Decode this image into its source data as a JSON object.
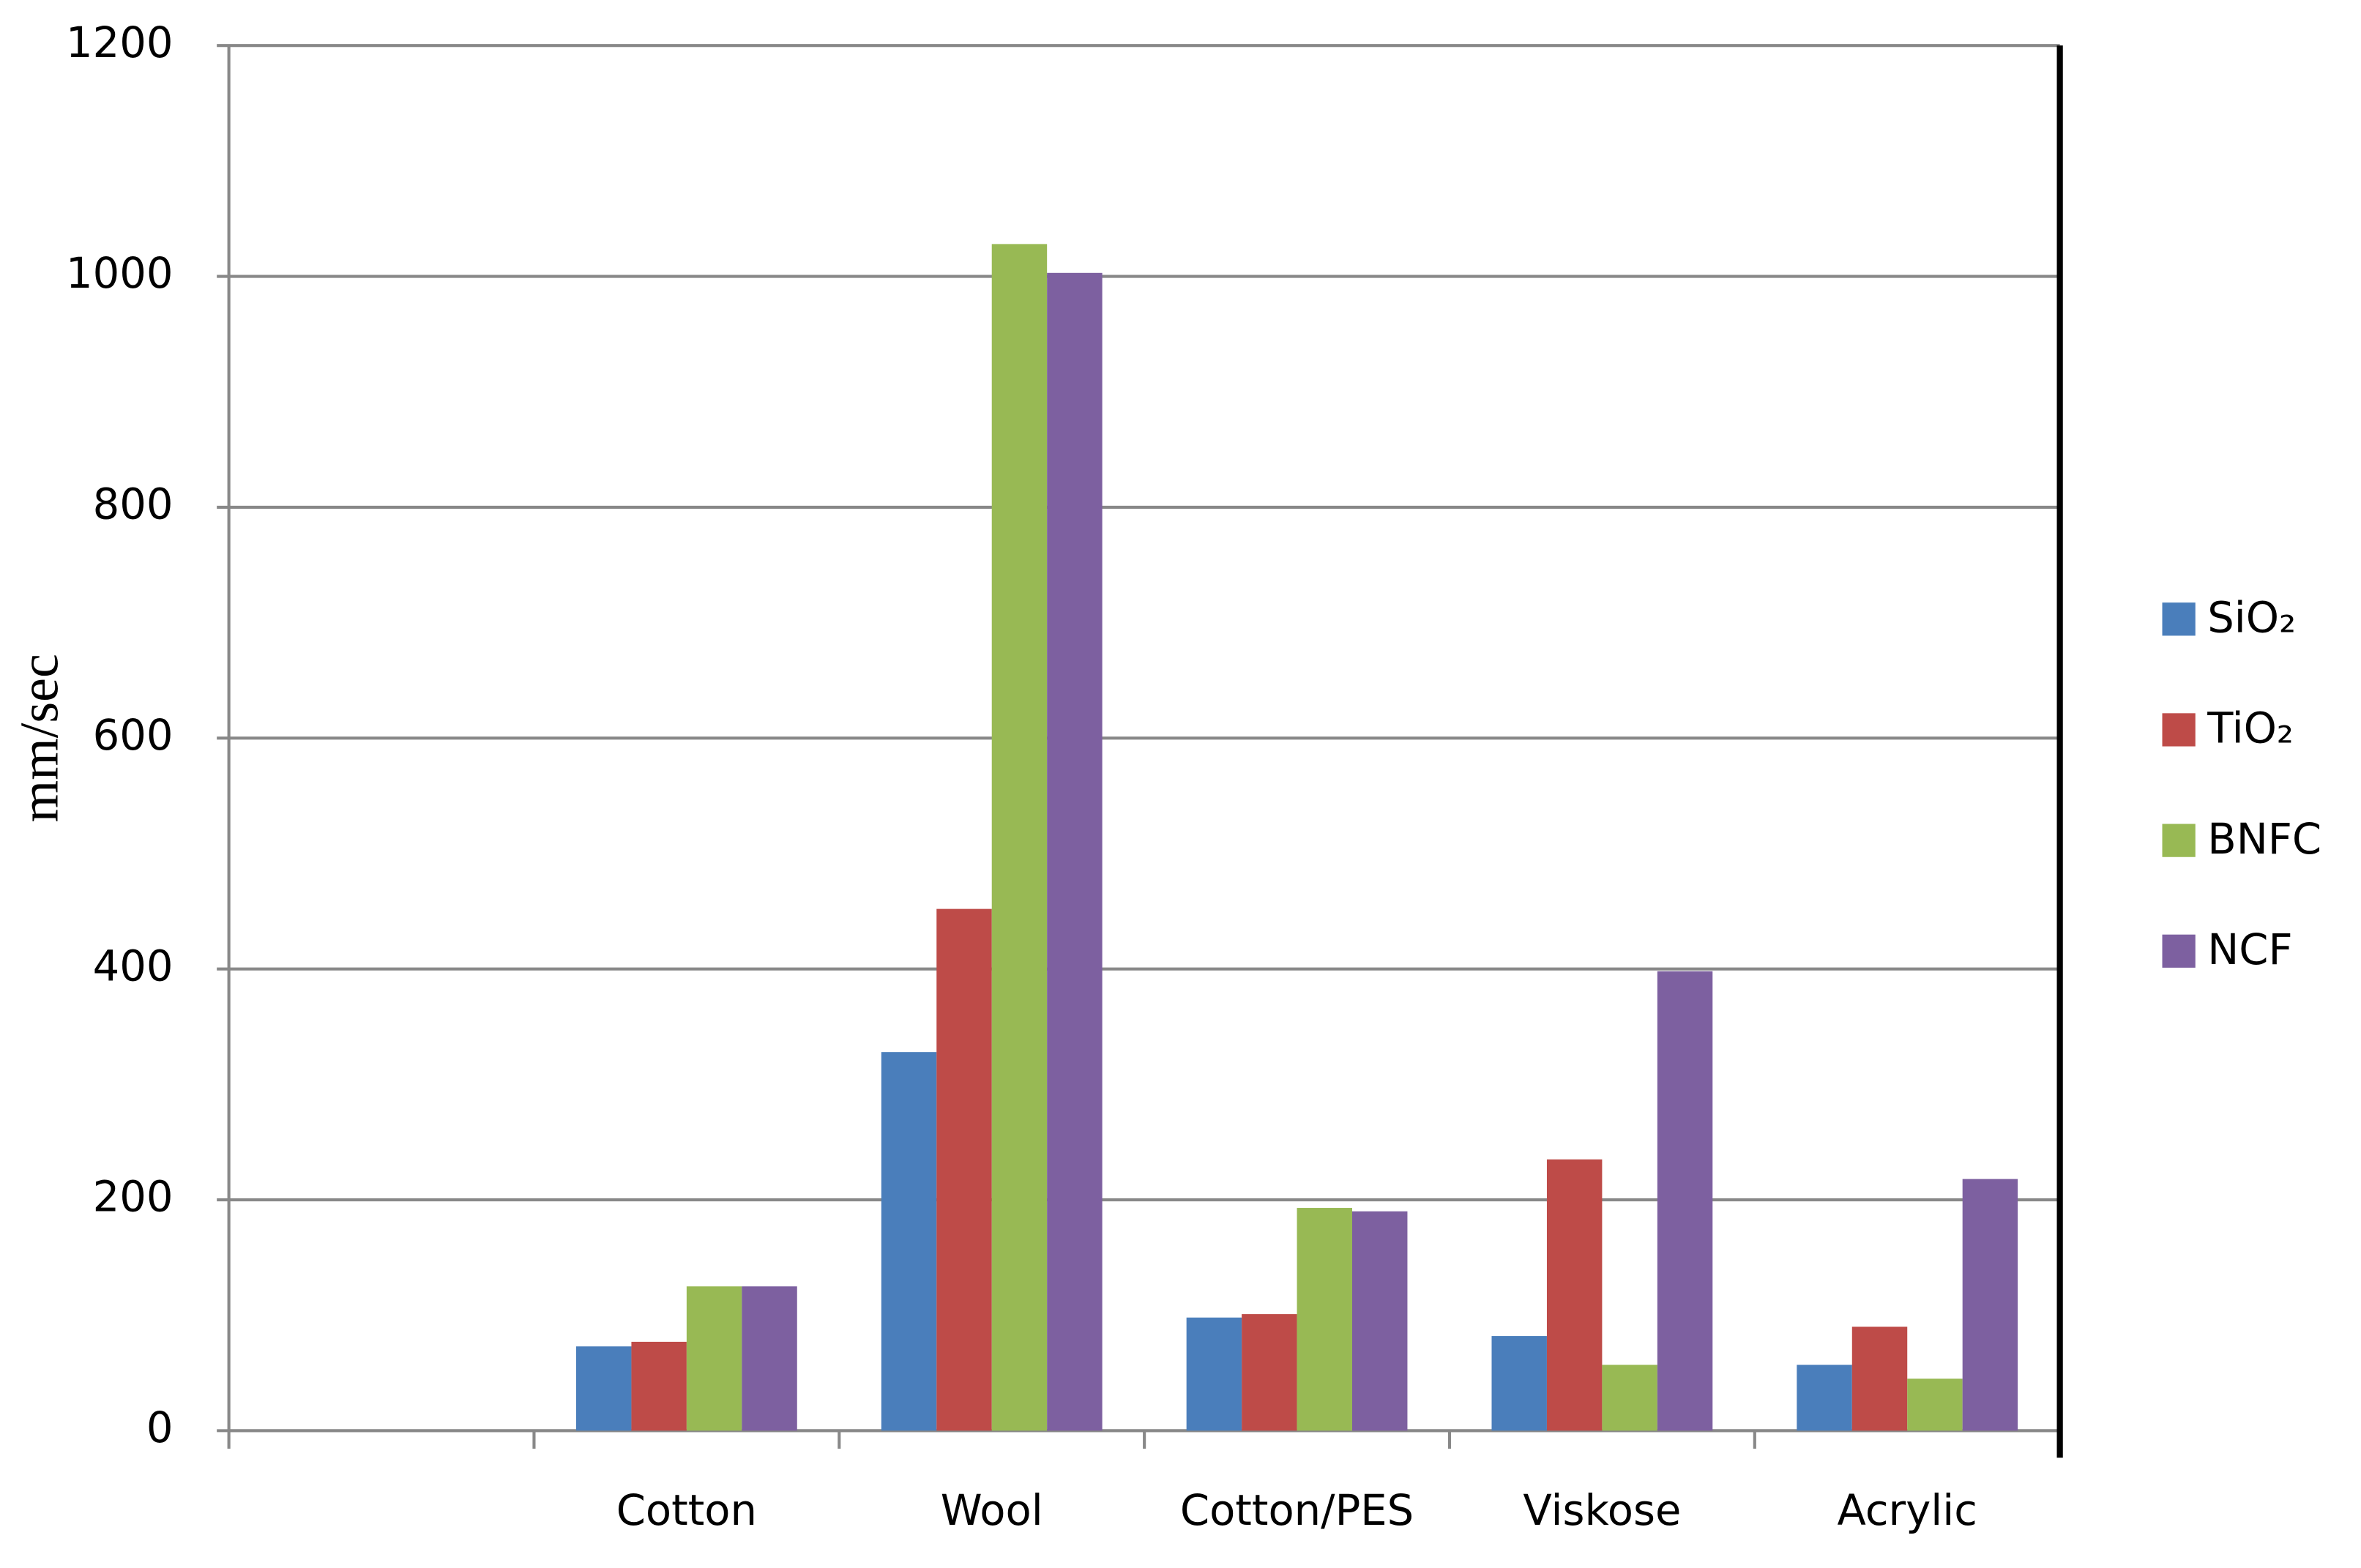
{
  "chart_data": {
    "type": "bar",
    "y_label": "mm/sec",
    "categories": [
      null,
      "Cotton",
      "Wool",
      "Cotton/PES",
      "Viskose",
      "Acrylic"
    ],
    "series": [
      {
        "name": "SiO₂",
        "color": "#4a7ebb",
        "values": [
          null,
          73,
          328,
          98,
          82,
          57
        ]
      },
      {
        "name": "TiO₂",
        "color": "#be4b48",
        "values": [
          null,
          77,
          452,
          101,
          235,
          90
        ]
      },
      {
        "name": "BNFC",
        "color": "#98b954",
        "values": [
          null,
          125,
          1028,
          193,
          57,
          45
        ]
      },
      {
        "name": "NCF",
        "color": "#7d60a0",
        "values": [
          null,
          125,
          1003,
          190,
          398,
          218
        ]
      }
    ],
    "ylim": [
      0,
      1200
    ],
    "yticks": [
      0,
      200,
      400,
      600,
      800,
      1000,
      1200
    ],
    "grid": true,
    "legend": "right"
  }
}
